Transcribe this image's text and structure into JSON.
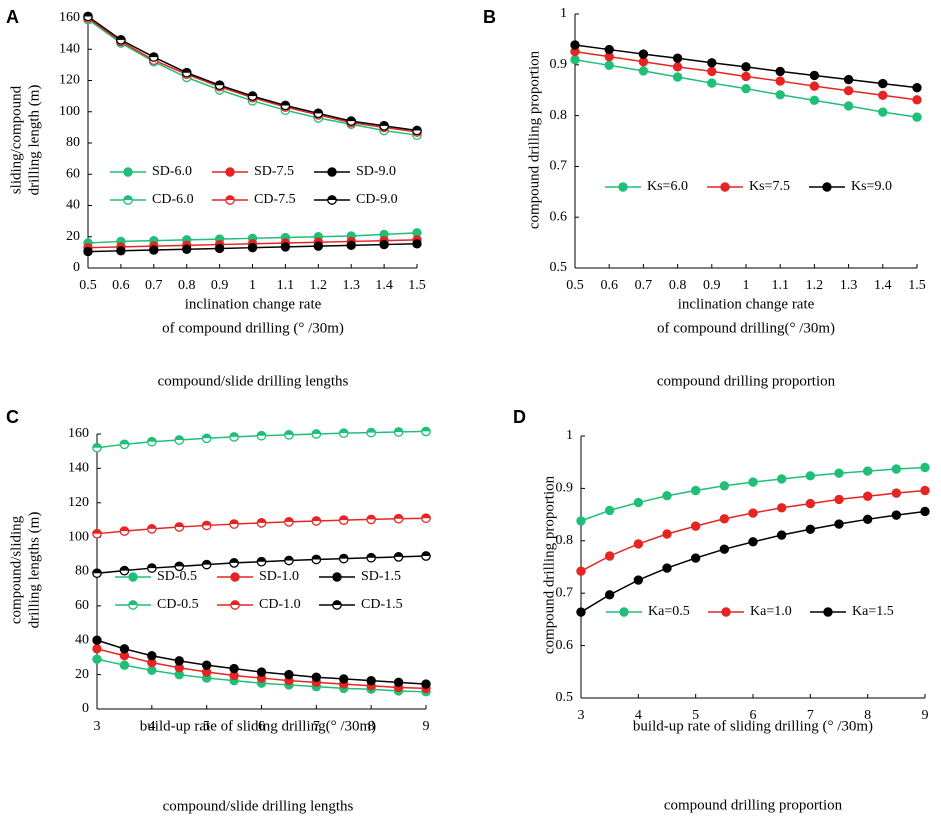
{
  "chart_data": [
    {
      "panel": "A",
      "type": "line",
      "caption": "compound/slide drilling lengths",
      "xlabel": [
        "inclination change rate",
        "of compound drilling (° /30m)"
      ],
      "ylabel": [
        "sliding/compound",
        "drilling length (m)"
      ],
      "xlim": [
        0.5,
        1.5
      ],
      "ylim": [
        0,
        160
      ],
      "xticks": [
        0.5,
        0.6,
        0.7,
        0.8,
        0.9,
        1,
        1.1,
        1.2,
        1.3,
        1.4,
        1.5
      ],
      "xtick_labels": [
        "0.5",
        "0.6",
        "0.7",
        "0.8",
        "0.9",
        "1",
        "1.1",
        "1.2",
        "1.3",
        "1.4",
        "1.5"
      ],
      "yticks": [
        0,
        20,
        40,
        60,
        80,
        100,
        120,
        140,
        160
      ],
      "grid": false,
      "legend_columns": 3,
      "x": [
        0.5,
        0.6,
        0.7,
        0.8,
        0.9,
        1.0,
        1.1,
        1.2,
        1.3,
        1.4,
        1.5
      ],
      "series": [
        {
          "name": "SD-6.0",
          "color": "#1fbf78",
          "marker": "dot",
          "values": [
            16,
            17,
            17.5,
            18,
            18.5,
            19,
            19.5,
            20,
            20.5,
            21.5,
            22.5
          ]
        },
        {
          "name": "SD-7.5",
          "color": "#e52523",
          "marker": "dot",
          "values": [
            13,
            13.5,
            14,
            14.5,
            15,
            15.5,
            16,
            16.5,
            17,
            17.5,
            18
          ]
        },
        {
          "name": "SD-9.0",
          "color": "#000000",
          "marker": "dot",
          "values": [
            10.5,
            11,
            11.5,
            12,
            12.5,
            13,
            13.5,
            14,
            14.5,
            15,
            15.5
          ]
        },
        {
          "name": "CD-6.0",
          "color": "#1fbf78",
          "marker": "half",
          "values": [
            159,
            144,
            132,
            122,
            114,
            107,
            101,
            96,
            92,
            88,
            85
          ]
        },
        {
          "name": "CD-7.5",
          "color": "#e52523",
          "marker": "half",
          "values": [
            160,
            145,
            133,
            124,
            116,
            109,
            103,
            98,
            93,
            90,
            87
          ]
        },
        {
          "name": "CD-9.0",
          "color": "#000000",
          "marker": "half",
          "values": [
            161,
            146,
            135,
            125,
            117,
            110,
            104,
            99,
            94,
            91,
            88
          ]
        }
      ]
    },
    {
      "panel": "B",
      "type": "line",
      "caption": "compound drilling proportion",
      "xlabel": [
        "inclination change rate",
        "of compound drilling(° /30m)"
      ],
      "ylabel": [
        "compound drilling proportion"
      ],
      "xlim": [
        0.5,
        1.5
      ],
      "ylim": [
        0.5,
        1
      ],
      "xticks": [
        0.5,
        0.6,
        0.7,
        0.8,
        0.9,
        1,
        1.1,
        1.2,
        1.3,
        1.4,
        1.5
      ],
      "xtick_labels": [
        "0.5",
        "0.6",
        "0.7",
        "0.8",
        "0.9",
        "1",
        "1.1",
        "1.2",
        "1.3",
        "1.4",
        "1.5"
      ],
      "yticks": [
        0.5,
        0.6,
        0.7,
        0.8,
        0.9,
        1
      ],
      "ytick_labels": [
        "0.5",
        "0.6",
        "0.7",
        "0.8",
        "0.9",
        "1"
      ],
      "grid": false,
      "legend_columns": 3,
      "x": [
        0.5,
        0.6,
        0.7,
        0.8,
        0.9,
        1.0,
        1.1,
        1.2,
        1.3,
        1.4,
        1.5
      ],
      "series": [
        {
          "name": "Ks=6.0",
          "color": "#1fbf78",
          "marker": "dot",
          "values": [
            0.91,
            0.899,
            0.888,
            0.876,
            0.864,
            0.853,
            0.841,
            0.83,
            0.819,
            0.807,
            0.797
          ]
        },
        {
          "name": "Ks=7.5",
          "color": "#e52523",
          "marker": "dot",
          "values": [
            0.926,
            0.916,
            0.906,
            0.896,
            0.887,
            0.877,
            0.868,
            0.858,
            0.849,
            0.84,
            0.831
          ]
        },
        {
          "name": "Ks=9.0",
          "color": "#000000",
          "marker": "dot",
          "values": [
            0.939,
            0.93,
            0.921,
            0.913,
            0.904,
            0.896,
            0.887,
            0.879,
            0.871,
            0.863,
            0.855
          ]
        }
      ]
    },
    {
      "panel": "C",
      "type": "line",
      "caption": "compound/slide drilling lengths",
      "xlabel": [
        "build-up rate  of sliding drilling(° /30m)"
      ],
      "ylabel": [
        "compound/sliding",
        "drilling lengths (m)"
      ],
      "xlim": [
        3,
        9
      ],
      "ylim": [
        0,
        160
      ],
      "xticks": [
        3,
        4,
        5,
        6,
        7,
        8,
        9
      ],
      "xtick_labels": [
        "3",
        "4",
        "5",
        "6",
        "7",
        "8",
        "9"
      ],
      "yticks": [
        0,
        20,
        40,
        60,
        80,
        100,
        120,
        140,
        160
      ],
      "grid": false,
      "legend_columns": 3,
      "x": [
        3,
        3.5,
        4,
        4.5,
        5,
        5.5,
        6,
        6.5,
        7,
        7.5,
        8,
        8.5,
        9
      ],
      "series": [
        {
          "name": "SD-0.5",
          "color": "#1fbf78",
          "marker": "dot",
          "values": [
            29,
            25.5,
            22.5,
            20,
            18,
            16.5,
            15,
            14,
            13,
            12,
            11.5,
            10.5,
            10
          ]
        },
        {
          "name": "SD-1.0",
          "color": "#e52523",
          "marker": "dot",
          "values": [
            35,
            31,
            27,
            24,
            21.5,
            19.5,
            18,
            16.5,
            15.5,
            14.5,
            13.5,
            12.5,
            12
          ]
        },
        {
          "name": "SD-1.5",
          "color": "#000000",
          "marker": "dot",
          "values": [
            40,
            35,
            31,
            28,
            25.5,
            23.5,
            21.5,
            20,
            18.5,
            17.5,
            16.5,
            15.5,
            14.5
          ]
        },
        {
          "name": "CD-0.5",
          "color": "#1fbf78",
          "marker": "half",
          "values": [
            152,
            154,
            155.5,
            156.5,
            157.5,
            158.3,
            159,
            159.5,
            160,
            160.5,
            160.8,
            161.2,
            161.5
          ]
        },
        {
          "name": "CD-1.0",
          "color": "#e52523",
          "marker": "half",
          "values": [
            102,
            103.5,
            104.8,
            105.9,
            106.8,
            107.6,
            108.3,
            108.9,
            109.4,
            109.9,
            110.3,
            110.7,
            111
          ]
        },
        {
          "name": "CD-1.5",
          "color": "#000000",
          "marker": "half",
          "values": [
            79,
            80.5,
            82,
            83,
            84,
            85,
            85.7,
            86.4,
            87,
            87.5,
            88,
            88.5,
            89
          ]
        }
      ]
    },
    {
      "panel": "D",
      "type": "line",
      "caption": "compound drilling proportion",
      "xlabel": [
        "build-up rate of sliding drilling (° /30m)"
      ],
      "ylabel": [
        "compound drilling proportion"
      ],
      "xlim": [
        3,
        9
      ],
      "ylim": [
        0.5,
        1
      ],
      "xticks": [
        3,
        4,
        5,
        6,
        7,
        8,
        9
      ],
      "xtick_labels": [
        "3",
        "4",
        "5",
        "6",
        "7",
        "8",
        "9"
      ],
      "yticks": [
        0.5,
        0.6,
        0.7,
        0.8,
        0.9,
        1
      ],
      "ytick_labels": [
        "0.5",
        "0.6",
        "0.7",
        "0.8",
        "0.9",
        "1"
      ],
      "grid": false,
      "legend_columns": 3,
      "x": [
        3,
        3.5,
        4,
        4.5,
        5,
        5.5,
        6,
        6.5,
        7,
        7.5,
        8,
        8.5,
        9
      ],
      "series": [
        {
          "name": "Ka=0.5",
          "color": "#1fbf78",
          "marker": "dot",
          "values": [
            0.838,
            0.858,
            0.873,
            0.886,
            0.896,
            0.905,
            0.912,
            0.918,
            0.924,
            0.929,
            0.933,
            0.937,
            0.94
          ]
        },
        {
          "name": "Ka=1.0",
          "color": "#e52523",
          "marker": "dot",
          "values": [
            0.742,
            0.771,
            0.794,
            0.813,
            0.828,
            0.842,
            0.853,
            0.863,
            0.871,
            0.879,
            0.885,
            0.891,
            0.896
          ]
        },
        {
          "name": "Ka=1.5",
          "color": "#000000",
          "marker": "dot",
          "values": [
            0.664,
            0.697,
            0.725,
            0.748,
            0.767,
            0.784,
            0.798,
            0.811,
            0.822,
            0.832,
            0.841,
            0.849,
            0.856
          ]
        }
      ]
    }
  ]
}
